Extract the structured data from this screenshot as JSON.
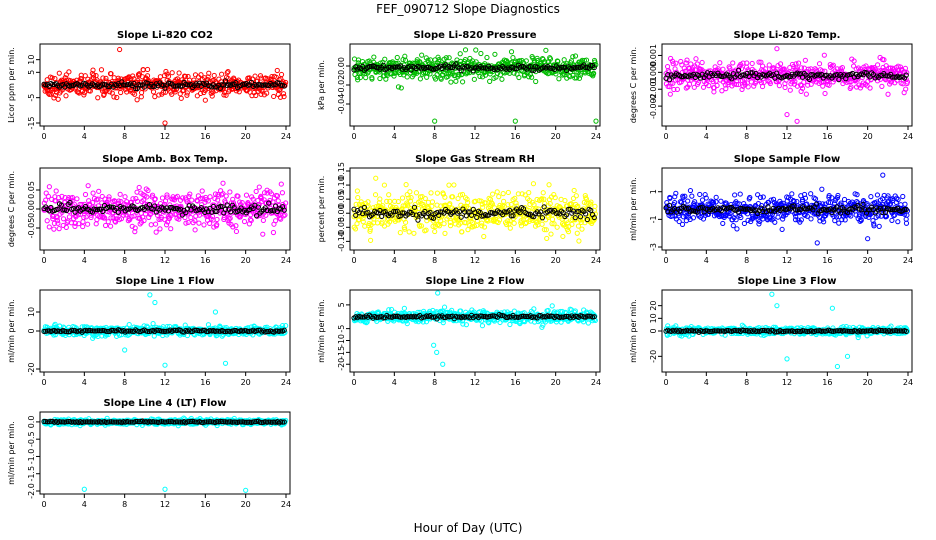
{
  "figure": {
    "title": "FEF_090712  Slope Diagnostics",
    "xlabel": "Hour of Day (UTC)"
  },
  "chart_data": [
    {
      "type": "scatter",
      "title": "Slope Li-820 CO2",
      "ylabel": "Licor ppm per min.",
      "color": "#ff0000",
      "xlim": [
        0,
        24
      ],
      "ylim": [
        -15,
        15
      ],
      "xticks": [
        0,
        4,
        8,
        12,
        16,
        20,
        24
      ],
      "yticks": [
        -15,
        -5,
        5,
        10
      ],
      "ytick_labels": [
        "-15",
        "-5",
        "5",
        "10"
      ],
      "base": 0,
      "spread": 4.5,
      "outliers": [
        [
          7.5,
          14
        ],
        [
          12,
          -15
        ],
        [
          16,
          -6
        ]
      ]
    },
    {
      "type": "scatter",
      "title": "Slope Li-820 Pressure",
      "ylabel": "kPa per min.",
      "color": "#00bb00",
      "xlim": [
        0,
        24
      ],
      "ylim": [
        -0.06,
        0.02
      ],
      "xticks": [
        0,
        4,
        8,
        12,
        16,
        20,
        24
      ],
      "yticks": [
        -0.04,
        -0.02,
        0.0
      ],
      "ytick_labels": [
        "-0.04",
        "-0.02",
        "0.00"
      ],
      "base": -0.002,
      "spread": 0.012,
      "outliers": [
        [
          8,
          -0.058
        ],
        [
          16,
          -0.058
        ],
        [
          24,
          -0.058
        ]
      ]
    },
    {
      "type": "scatter",
      "title": "Slope Li-820 Temp.",
      "ylabel": "degrees C per min.",
      "color": "#ff00ff",
      "xlim": [
        0,
        24
      ],
      "ylim": [
        -0.003,
        0.0015
      ],
      "xticks": [
        0,
        4,
        8,
        12,
        16,
        20,
        24
      ],
      "yticks": [
        -0.002,
        -0.001,
        0.0,
        0.001
      ],
      "ytick_labels": [
        "-0.002",
        "-0.001",
        "0.000",
        "0.001"
      ],
      "base": -0.0002,
      "spread": 0.0008,
      "outliers": [
        [
          11,
          0.0014
        ],
        [
          12,
          -0.0025
        ],
        [
          13,
          -0.0029
        ]
      ]
    },
    {
      "type": "scatter",
      "title": "Slope Amb. Box Temp.",
      "ylabel": "degrees C per min.",
      "color": "#ff00ff",
      "xlim": [
        0,
        24
      ],
      "ylim": [
        -0.1,
        0.1
      ],
      "xticks": [
        0,
        4,
        8,
        12,
        16,
        20,
        24
      ],
      "yticks": [
        -0.05,
        0.0,
        0.05
      ],
      "ytick_labels": [
        "-0.05",
        "0.00",
        "0.05"
      ],
      "base": 0,
      "spread": 0.05,
      "outliers": []
    },
    {
      "type": "scatter",
      "title": "Slope Gas Stream RH",
      "ylabel": "percent per min.",
      "color": "#ffff00",
      "xlim": [
        0,
        24
      ],
      "ylim": [
        -0.12,
        0.15
      ],
      "xticks": [
        0,
        4,
        8,
        12,
        16,
        20,
        24
      ],
      "yticks": [
        -0.1,
        -0.05,
        0.0,
        0.05,
        0.1,
        0.15
      ],
      "ytick_labels": [
        "-0.10",
        "-0.05",
        "0.00",
        "0.05",
        "0.10",
        "0.15"
      ],
      "base": 0,
      "spread": 0.07,
      "outliers": []
    },
    {
      "type": "scatter",
      "title": "Slope Sample Flow",
      "ylabel": "ml/min per min.",
      "color": "#0000ff",
      "xlim": [
        0,
        24
      ],
      "ylim": [
        -3,
        2.5
      ],
      "xticks": [
        0,
        4,
        8,
        12,
        16,
        20,
        24
      ],
      "yticks": [
        -3,
        -1,
        1
      ],
      "ytick_labels": [
        "-3",
        "-1",
        "1"
      ],
      "base": -0.3,
      "spread": 1.0,
      "outliers": [
        [
          21.5,
          2.2
        ],
        [
          15,
          -2.7
        ],
        [
          20,
          -2.4
        ]
      ]
    },
    {
      "type": "scatter",
      "title": "Slope Line 1 Flow",
      "ylabel": "ml/min per min.",
      "color": "#00ffff",
      "xlim": [
        0,
        24
      ],
      "ylim": [
        -20,
        20
      ],
      "xticks": [
        0,
        4,
        8,
        12,
        16,
        20,
        24
      ],
      "yticks": [
        -20,
        0,
        10
      ],
      "ytick_labels": [
        "-20",
        "0",
        "10"
      ],
      "base": 0,
      "spread": 2.5,
      "outliers": [
        [
          10.5,
          19
        ],
        [
          11,
          15
        ],
        [
          12,
          -18
        ],
        [
          8,
          -10
        ],
        [
          17,
          10
        ],
        [
          18,
          -17
        ]
      ]
    },
    {
      "type": "scatter",
      "title": "Slope Line 2 Flow",
      "ylabel": "ml/min per min.",
      "color": "#00ffff",
      "xlim": [
        0,
        24
      ],
      "ylim": [
        -22,
        10
      ],
      "xticks": [
        0,
        4,
        8,
        12,
        16,
        20,
        24
      ],
      "yticks": [
        -20,
        -15,
        -10,
        -5,
        5
      ],
      "ytick_labels": [
        "-20",
        "-15",
        "-10",
        "-5",
        "5"
      ],
      "base": 0,
      "spread": 2.5,
      "outliers": [
        [
          8.3,
          10
        ],
        [
          8.8,
          -20
        ],
        [
          7.9,
          -12
        ],
        [
          8.2,
          -15
        ]
      ]
    },
    {
      "type": "scatter",
      "title": "Slope Line 3 Flow",
      "ylabel": "ml/min per min.",
      "color": "#00ffff",
      "xlim": [
        0,
        24
      ],
      "ylim": [
        -30,
        30
      ],
      "xticks": [
        0,
        4,
        8,
        12,
        16,
        20,
        24
      ],
      "yticks": [
        -20,
        0,
        10,
        20
      ],
      "ytick_labels": [
        "-20",
        "0",
        "10",
        "20"
      ],
      "base": 0,
      "spread": 3,
      "outliers": [
        [
          10.5,
          29
        ],
        [
          11,
          20
        ],
        [
          12,
          -22
        ],
        [
          17,
          -28
        ],
        [
          18,
          -20
        ],
        [
          16.5,
          18
        ]
      ]
    },
    {
      "type": "scatter",
      "title": "Slope Line 4 (LT) Flow",
      "ylabel": "ml/min per min.",
      "color": "#00ffff",
      "xlim": [
        0,
        24
      ],
      "ylim": [
        -2,
        0.2
      ],
      "xticks": [
        0,
        4,
        8,
        12,
        16,
        20,
        24
      ],
      "yticks": [
        -2.0,
        -1.5,
        -1.0,
        -0.5,
        0.0
      ],
      "ytick_labels": [
        "-2.0",
        "-1.5",
        "-1.0",
        "-0.5",
        "0.0"
      ],
      "base": 0,
      "spread": 0.08,
      "outliers": [
        [
          4,
          -1.95
        ],
        [
          12,
          -1.95
        ],
        [
          20,
          -1.98
        ]
      ]
    }
  ]
}
